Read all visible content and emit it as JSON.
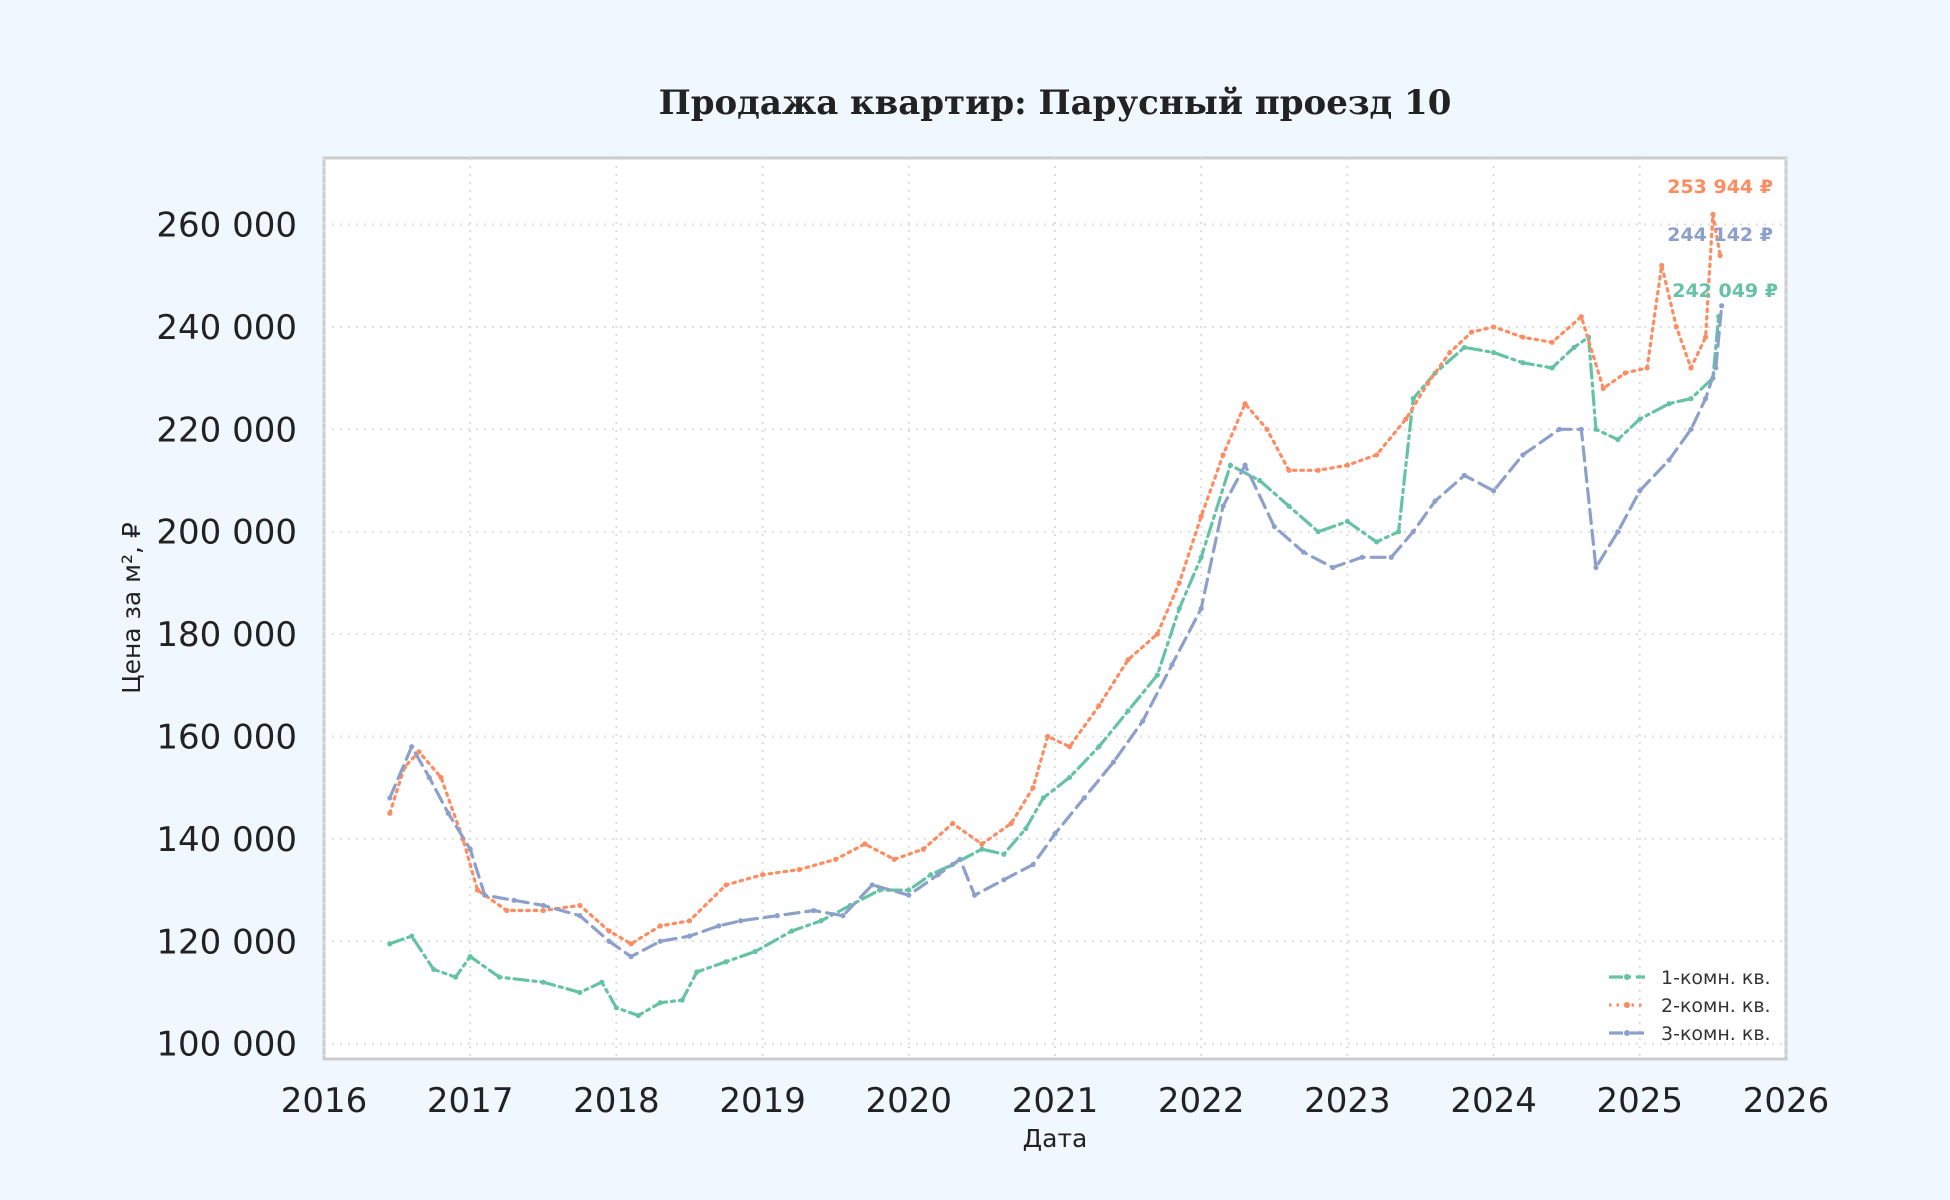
{
  "chart_data": {
    "type": "line",
    "title": "Продажа квартир: Парусный проезд 10",
    "xlabel": "Дата",
    "ylabel": "Цена за м², ₽",
    "xlim": [
      2016.0,
      2026.0
    ],
    "ylim": [
      97000,
      273000
    ],
    "x_ticks": [
      "2016",
      "2017",
      "2018",
      "2019",
      "2020",
      "2021",
      "2022",
      "2023",
      "2024",
      "2025",
      "2026"
    ],
    "y_ticks": [
      "100 000",
      "120 000",
      "140 000",
      "160 000",
      "180 000",
      "200 000",
      "220 000",
      "240 000",
      "260 000"
    ],
    "grid": true,
    "legend_position": "lower right",
    "series": [
      {
        "name": "1-комн. кв.",
        "color": "#66c2a5",
        "style": "dashdot",
        "end_label": "242 049 ₽",
        "points": [
          [
            2016.45,
            119500
          ],
          [
            2016.6,
            121000
          ],
          [
            2016.75,
            114500
          ],
          [
            2016.9,
            113000
          ],
          [
            2017.0,
            117000
          ],
          [
            2017.2,
            113000
          ],
          [
            2017.5,
            112000
          ],
          [
            2017.75,
            110000
          ],
          [
            2017.9,
            112000
          ],
          [
            2018.0,
            107000
          ],
          [
            2018.15,
            105500
          ],
          [
            2018.3,
            108000
          ],
          [
            2018.45,
            108500
          ],
          [
            2018.55,
            114000
          ],
          [
            2018.75,
            116000
          ],
          [
            2018.95,
            118000
          ],
          [
            2019.2,
            122000
          ],
          [
            2019.4,
            124000
          ],
          [
            2019.6,
            127000
          ],
          [
            2019.8,
            130000
          ],
          [
            2020.0,
            130000
          ],
          [
            2020.15,
            133000
          ],
          [
            2020.3,
            135000
          ],
          [
            2020.5,
            138000
          ],
          [
            2020.65,
            137000
          ],
          [
            2020.8,
            142000
          ],
          [
            2020.92,
            148000
          ],
          [
            2021.1,
            152000
          ],
          [
            2021.3,
            158000
          ],
          [
            2021.5,
            165000
          ],
          [
            2021.7,
            172000
          ],
          [
            2021.85,
            185000
          ],
          [
            2022.0,
            195000
          ],
          [
            2022.2,
            213000
          ],
          [
            2022.4,
            210000
          ],
          [
            2022.6,
            205000
          ],
          [
            2022.8,
            200000
          ],
          [
            2023.0,
            202000
          ],
          [
            2023.2,
            198000
          ],
          [
            2023.35,
            200000
          ],
          [
            2023.45,
            226000
          ],
          [
            2023.6,
            231000
          ],
          [
            2023.8,
            236000
          ],
          [
            2024.0,
            235000
          ],
          [
            2024.2,
            233000
          ],
          [
            2024.4,
            232000
          ],
          [
            2024.55,
            236000
          ],
          [
            2024.65,
            238000
          ],
          [
            2024.7,
            220000
          ],
          [
            2024.85,
            218000
          ],
          [
            2025.0,
            222000
          ],
          [
            2025.2,
            225000
          ],
          [
            2025.35,
            226000
          ],
          [
            2025.5,
            230000
          ],
          [
            2025.54,
            242049
          ]
        ]
      },
      {
        "name": "2-комн. кв.",
        "color": "#fc8d62",
        "style": "dotted",
        "end_label": "253 944 ₽",
        "points": [
          [
            2016.45,
            145000
          ],
          [
            2016.55,
            154000
          ],
          [
            2016.65,
            157000
          ],
          [
            2016.8,
            152000
          ],
          [
            2016.95,
            140000
          ],
          [
            2017.05,
            130000
          ],
          [
            2017.25,
            126000
          ],
          [
            2017.5,
            126000
          ],
          [
            2017.75,
            127000
          ],
          [
            2017.95,
            122000
          ],
          [
            2018.1,
            119500
          ],
          [
            2018.3,
            123000
          ],
          [
            2018.5,
            124000
          ],
          [
            2018.75,
            131000
          ],
          [
            2019.0,
            133000
          ],
          [
            2019.25,
            134000
          ],
          [
            2019.5,
            136000
          ],
          [
            2019.7,
            139000
          ],
          [
            2019.9,
            136000
          ],
          [
            2020.1,
            138000
          ],
          [
            2020.3,
            143000
          ],
          [
            2020.5,
            139000
          ],
          [
            2020.7,
            143000
          ],
          [
            2020.85,
            150000
          ],
          [
            2020.95,
            160000
          ],
          [
            2021.1,
            158000
          ],
          [
            2021.3,
            166000
          ],
          [
            2021.5,
            175000
          ],
          [
            2021.7,
            180000
          ],
          [
            2021.85,
            190000
          ],
          [
            2022.0,
            203000
          ],
          [
            2022.15,
            215000
          ],
          [
            2022.3,
            225000
          ],
          [
            2022.45,
            220000
          ],
          [
            2022.6,
            212000
          ],
          [
            2022.8,
            212000
          ],
          [
            2023.0,
            213000
          ],
          [
            2023.2,
            215000
          ],
          [
            2023.4,
            222000
          ],
          [
            2023.55,
            229000
          ],
          [
            2023.7,
            235000
          ],
          [
            2023.85,
            239000
          ],
          [
            2024.0,
            240000
          ],
          [
            2024.2,
            238000
          ],
          [
            2024.4,
            237000
          ],
          [
            2024.6,
            242000
          ],
          [
            2024.75,
            228000
          ],
          [
            2024.9,
            231000
          ],
          [
            2025.05,
            232000
          ],
          [
            2025.15,
            252000
          ],
          [
            2025.25,
            240000
          ],
          [
            2025.35,
            232000
          ],
          [
            2025.45,
            238000
          ],
          [
            2025.5,
            262000
          ],
          [
            2025.55,
            253944
          ]
        ]
      },
      {
        "name": "3-комн. кв.",
        "color": "#8da0cb",
        "style": "dashed",
        "end_label": "244 142 ₽",
        "points": [
          [
            2016.45,
            148000
          ],
          [
            2016.6,
            158000
          ],
          [
            2016.72,
            152000
          ],
          [
            2016.85,
            145000
          ],
          [
            2017.0,
            138000
          ],
          [
            2017.1,
            129000
          ],
          [
            2017.3,
            128000
          ],
          [
            2017.5,
            127000
          ],
          [
            2017.75,
            125000
          ],
          [
            2017.95,
            120000
          ],
          [
            2018.1,
            117000
          ],
          [
            2018.3,
            120000
          ],
          [
            2018.5,
            121000
          ],
          [
            2018.7,
            123000
          ],
          [
            2018.85,
            124000
          ],
          [
            2019.1,
            125000
          ],
          [
            2019.35,
            126000
          ],
          [
            2019.55,
            125000
          ],
          [
            2019.75,
            131000
          ],
          [
            2020.0,
            129000
          ],
          [
            2020.2,
            133000
          ],
          [
            2020.35,
            136000
          ],
          [
            2020.45,
            129000
          ],
          [
            2020.65,
            132000
          ],
          [
            2020.85,
            135000
          ],
          [
            2021.0,
            141000
          ],
          [
            2021.2,
            148000
          ],
          [
            2021.4,
            155000
          ],
          [
            2021.6,
            163000
          ],
          [
            2021.8,
            174000
          ],
          [
            2022.0,
            185000
          ],
          [
            2022.15,
            205000
          ],
          [
            2022.3,
            213000
          ],
          [
            2022.5,
            201000
          ],
          [
            2022.7,
            196000
          ],
          [
            2022.9,
            193000
          ],
          [
            2023.1,
            195000
          ],
          [
            2023.3,
            195000
          ],
          [
            2023.45,
            200000
          ],
          [
            2023.6,
            206000
          ],
          [
            2023.8,
            211000
          ],
          [
            2024.0,
            208000
          ],
          [
            2024.2,
            215000
          ],
          [
            2024.45,
            220000
          ],
          [
            2024.6,
            220000
          ],
          [
            2024.7,
            193000
          ],
          [
            2024.85,
            200000
          ],
          [
            2025.0,
            208000
          ],
          [
            2025.2,
            214000
          ],
          [
            2025.35,
            220000
          ],
          [
            2025.45,
            226000
          ],
          [
            2025.52,
            232000
          ],
          [
            2025.56,
            244142
          ]
        ]
      }
    ]
  }
}
